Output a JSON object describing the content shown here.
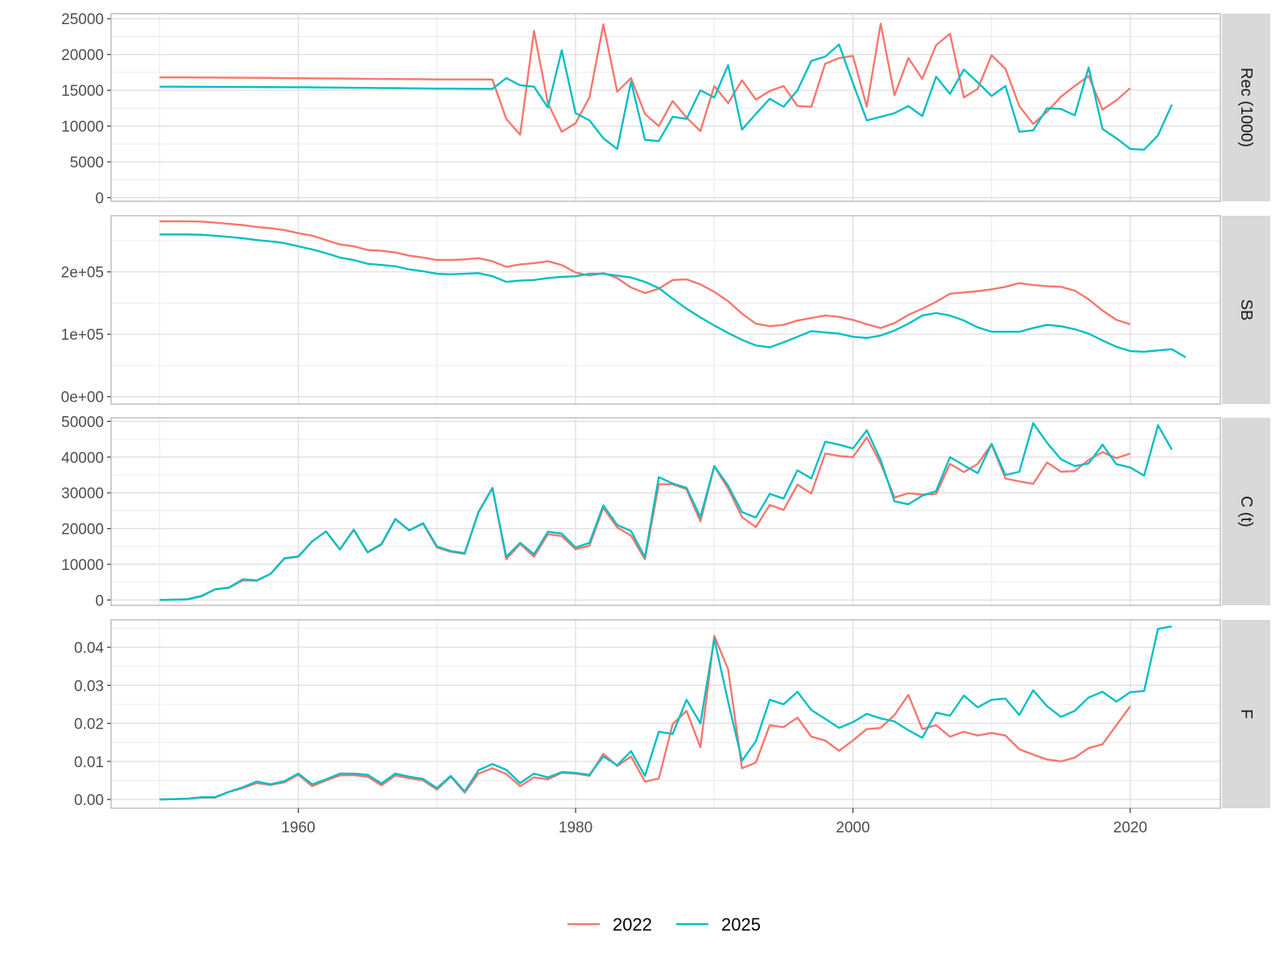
{
  "chart_data": {
    "type": "line",
    "layout": "faceted",
    "legend": {
      "position": "bottom",
      "entries": [
        {
          "name": "2022",
          "color": "#F8766D"
        },
        {
          "name": "2025",
          "color": "#00BFC4"
        }
      ]
    },
    "x_axis": {
      "range": [
        1946.5,
        2026.5
      ],
      "ticks": [
        1960,
        1980,
        2000,
        2020
      ],
      "tick_labels": [
        "1960",
        "1980",
        "2000",
        "2020"
      ],
      "grid": true
    },
    "panels": [
      {
        "strip_label": "Rec (1000)",
        "ylim": [
          -500,
          25700
        ],
        "y_ticks": [
          0,
          5000,
          10000,
          15000,
          20000,
          25000
        ],
        "y_tick_labels": [
          "0",
          "5000",
          "10000",
          "15000",
          "20000",
          "25000"
        ],
        "series": [
          {
            "name": "2022",
            "x_start": 1950,
            "values": [
              16800,
              16800,
              16800,
              16780,
              16780,
              16760,
              16750,
              16740,
              16720,
              16700,
              16690,
              16670,
              16650,
              16640,
              16620,
              16600,
              16590,
              16570,
              16560,
              16540,
              16520,
              16520,
              16520,
              16520,
              16500,
              11000,
              8800,
              23300,
              13200,
              9200,
              10400,
              14000,
              24200,
              14800,
              16700,
              11700,
              10000,
              13500,
              11200,
              9300,
              15600,
              13200,
              16400,
              13700,
              14900,
              15600,
              12800,
              12700,
              18700,
              19500,
              19800,
              12700,
              24300,
              14300,
              19500,
              16600,
              21300,
              22900,
              14000,
              15200,
              19900,
              18000,
              12800,
              10300,
              12000,
              14100,
              15600,
              17000,
              12300,
              13600,
              15300
            ],
            "note": ""
          },
          {
            "name": "2025",
            "x_start": 1950,
            "values": [
              15500,
              15500,
              15490,
              15490,
              15480,
              15470,
              15460,
              15450,
              15440,
              15430,
              15420,
              15410,
              15390,
              15370,
              15350,
              15330,
              15310,
              15300,
              15280,
              15260,
              15240,
              15230,
              15220,
              15210,
              15200,
              16700,
              15700,
              15500,
              12600,
              20600,
              11800,
              10800,
              8300,
              6800,
              16200,
              8100,
              7900,
              11300,
              11000,
              15000,
              14000,
              18500,
              9500,
              11700,
              13800,
              12700,
              15000,
              19100,
              19700,
              21400,
              16000,
              10800,
              11300,
              11800,
              12800,
              11400,
              16900,
              14500,
              17900,
              16100,
              14200,
              15600,
              9200,
              9400,
              12500,
              12400,
              11500,
              18200,
              9600,
              8300,
              6800,
              6700,
              8700,
              13000
            ]
          }
        ]
      },
      {
        "strip_label": "SB",
        "ylim": [
          -12000,
          290000
        ],
        "y_ticks": [
          0,
          100000,
          200000
        ],
        "y_tick_labels": [
          "0e+00",
          "1e+05",
          "2e+05"
        ],
        "series": [
          {
            "name": "2022",
            "x_start": 1950,
            "values": [
              281000,
              281000,
              281000,
              280500,
              279000,
              277000,
              275000,
              272000,
              270000,
              267000,
              262000,
              258000,
              251000,
              244000,
              241000,
              235000,
              234000,
              231000,
              226000,
              223000,
              219000,
              219000,
              220000,
              222000,
              217000,
              208000,
              212000,
              214000,
              217000,
              211000,
              199000,
              194000,
              198000,
              190000,
              175000,
              166000,
              173000,
              187000,
              188000,
              180000,
              168000,
              153000,
              133000,
              117000,
              113000,
              115000,
              122000,
              126000,
              130000,
              128000,
              123000,
              116000,
              110000,
              118000,
              131000,
              141000,
              152000,
              165000,
              167000,
              169000,
              172000,
              176000,
              182000,
              179000,
              177000,
              176000,
              170000,
              156000,
              138000,
              123000,
              116000
            ]
          },
          {
            "name": "2025",
            "x_start": 1950,
            "values": [
              260000,
              260000,
              260000,
              259500,
              258000,
              256000,
              254000,
              251000,
              249000,
              246000,
              241000,
              236000,
              230000,
              223000,
              219000,
              213000,
              211000,
              209000,
              204000,
              201000,
              197000,
              196000,
              197000,
              198000,
              193000,
              184000,
              186000,
              187000,
              190000,
              192000,
              193000,
              197000,
              197000,
              194000,
              191000,
              184000,
              174000,
              157000,
              141000,
              127000,
              114000,
              102000,
              91000,
              82000,
              79000,
              87000,
              96000,
              105000,
              103000,
              101000,
              96000,
              94000,
              98000,
              106000,
              117000,
              130000,
              134000,
              130000,
              122000,
              111000,
              104000,
              104000,
              104000,
              110000,
              115000,
              113000,
              108000,
              101000,
              90000,
              80000,
              73000,
              72000,
              74000,
              76000,
              63000
            ]
          }
        ]
      },
      {
        "strip_label": "C (t)",
        "ylim": [
          -1500,
          51000
        ],
        "y_ticks": [
          0,
          10000,
          20000,
          30000,
          40000,
          50000
        ],
        "y_tick_labels": [
          "0",
          "10000",
          "20000",
          "30000",
          "40000",
          "50000"
        ],
        "series": [
          {
            "name": "2022",
            "x_start": 1950,
            "values": [
              0,
              100,
              200,
              1000,
              3000,
              3400,
              5500,
              5400,
              7300,
              11600,
              12100,
              16400,
              19200,
              14100,
              19600,
              13300,
              15500,
              22600,
              19500,
              21400,
              14700,
              13500,
              12900,
              24700,
              31400,
              11400,
              15700,
              12100,
              18400,
              17900,
              14200,
              15200,
              25800,
              20300,
              18000,
              11400,
              32400,
              32400,
              31000,
              22000,
              37400,
              31200,
              23200,
              20400,
              26600,
              25200,
              32300,
              29800,
              41000,
              40300,
              40000,
              45500,
              38200,
              28700,
              29900,
              29500,
              29700,
              38100,
              35800,
              38100,
              43600,
              34000,
              33200,
              32500,
              38500,
              35900,
              36100,
              39200,
              41400,
              39700,
              41000
            ]
          },
          {
            "name": "2025",
            "x_start": 1950,
            "values": [
              0,
              100,
              200,
              1100,
              3000,
              3500,
              5800,
              5500,
              7300,
              11700,
              12200,
              16400,
              19200,
              14200,
              19700,
              13400,
              15700,
              22700,
              19500,
              21500,
              15000,
              13700,
              13100,
              24600,
              31300,
              12100,
              16000,
              12800,
              19100,
              18600,
              14700,
              16000,
              26500,
              21000,
              19300,
              12000,
              34400,
              32600,
              31400,
              23200,
              37500,
              32000,
              24600,
              23100,
              29700,
              28400,
              36300,
              34000,
              44300,
              43500,
              42400,
              47500,
              39200,
              27600,
              26800,
              29200,
              30500,
              40000,
              37700,
              35500,
              43700,
              35000,
              35900,
              49500,
              44000,
              39400,
              37500,
              38200,
              43500,
              38000,
              37100,
              34800,
              48900,
              42100
            ]
          }
        ]
      },
      {
        "strip_label": "F",
        "ylim": [
          -0.0023,
          0.0472
        ],
        "y_ticks": [
          0,
          0.01,
          0.02,
          0.03,
          0.04
        ],
        "y_tick_labels": [
          "0.00",
          "0.01",
          "0.02",
          "0.03",
          "0.04"
        ],
        "series": [
          {
            "name": "2022",
            "x_start": 1950,
            "values": [
              0,
              0.0001,
              0.0002,
              0.0005,
              0.0005,
              0.002,
              0.003,
              0.0043,
              0.0038,
              0.0045,
              0.0065,
              0.0035,
              0.005,
              0.0063,
              0.0064,
              0.006,
              0.0037,
              0.0063,
              0.0056,
              0.005,
              0.0026,
              0.006,
              0.0018,
              0.0068,
              0.0082,
              0.0067,
              0.0035,
              0.0058,
              0.0053,
              0.007,
              0.0068,
              0.0062,
              0.012,
              0.0088,
              0.0113,
              0.0047,
              0.0055,
              0.0198,
              0.0233,
              0.0137,
              0.043,
              0.0342,
              0.0082,
              0.0097,
              0.0195,
              0.019,
              0.0215,
              0.0165,
              0.0155,
              0.0128,
              0.0155,
              0.0185,
              0.0188,
              0.0222,
              0.0275,
              0.0185,
              0.0195,
              0.0165,
              0.0178,
              0.0168,
              0.0175,
              0.0168,
              0.0132,
              0.0118,
              0.0105,
              0.01,
              0.011,
              0.0135,
              0.0145,
              0.0195,
              0.0245
            ]
          },
          {
            "name": "2025",
            "x_start": 1950,
            "values": [
              0,
              0.0001,
              0.0002,
              0.0006,
              0.0006,
              0.002,
              0.0032,
              0.0047,
              0.004,
              0.0048,
              0.0068,
              0.004,
              0.0053,
              0.0068,
              0.0068,
              0.0065,
              0.0042,
              0.0068,
              0.006,
              0.0054,
              0.003,
              0.0062,
              0.0021,
              0.0077,
              0.0093,
              0.0078,
              0.0043,
              0.0068,
              0.0058,
              0.0072,
              0.007,
              0.0065,
              0.0113,
              0.009,
              0.0127,
              0.0062,
              0.0178,
              0.0172,
              0.0262,
              0.02,
              0.0422,
              0.0257,
              0.0102,
              0.0153,
              0.0262,
              0.025,
              0.0283,
              0.0235,
              0.0212,
              0.0188,
              0.0203,
              0.0225,
              0.0213,
              0.0205,
              0.0182,
              0.0162,
              0.0228,
              0.022,
              0.0273,
              0.0242,
              0.0262,
              0.0265,
              0.0222,
              0.0287,
              0.0245,
              0.0217,
              0.0233,
              0.0268,
              0.0283,
              0.0257,
              0.0282,
              0.0285,
              0.0448,
              0.0455
            ]
          }
        ]
      }
    ]
  }
}
